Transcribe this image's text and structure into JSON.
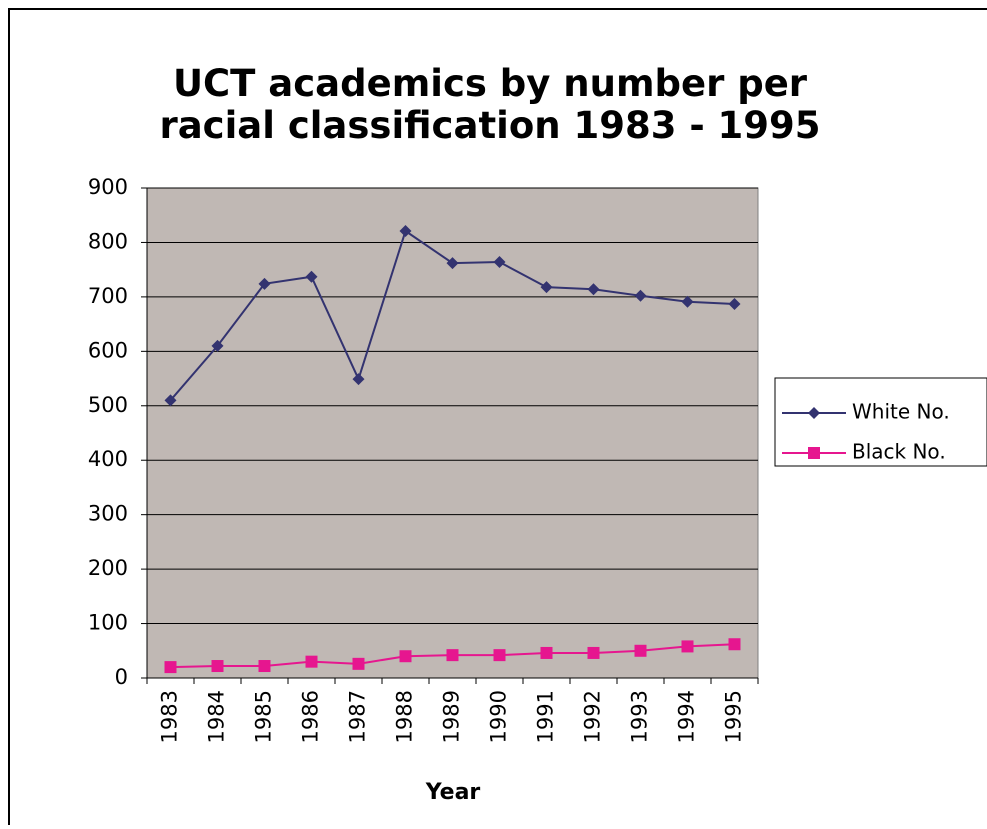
{
  "chart_data": {
    "type": "line",
    "title": "UCT academics by number per racial classification 1983 - 1995",
    "x_label": "Year",
    "categories": [
      "1983",
      "1984",
      "1985",
      "1986",
      "1987",
      "1988",
      "1989",
      "1990",
      "1991",
      "1992",
      "1993",
      "1994",
      "1995"
    ],
    "series": [
      {
        "name": "White No.",
        "color": "#333370",
        "marker": "diamond",
        "values": [
          510,
          610,
          724,
          737,
          549,
          821,
          762,
          764,
          718,
          714,
          702,
          691,
          687
        ]
      },
      {
        "name": "Black No.",
        "color": "#e6168f",
        "marker": "square",
        "values": [
          20,
          22,
          22,
          30,
          26,
          40,
          42,
          42,
          46,
          46,
          50,
          58,
          62
        ]
      }
    ],
    "ylim": [
      0,
      900
    ],
    "yticks": [
      0,
      100,
      200,
      300,
      400,
      500,
      600,
      700,
      800,
      900
    ],
    "grid": true,
    "legend": "right"
  }
}
